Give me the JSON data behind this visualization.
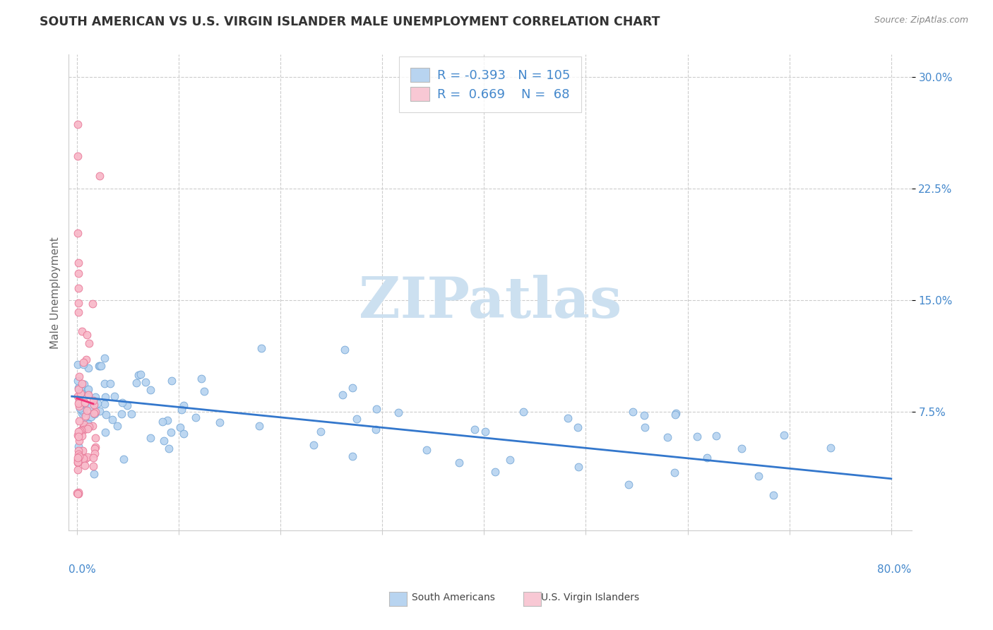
{
  "title": "SOUTH AMERICAN VS U.S. VIRGIN ISLANDER MALE UNEMPLOYMENT CORRELATION CHART",
  "source": "Source: ZipAtlas.com",
  "ylabel": "Male Unemployment",
  "xlim": [
    -0.008,
    0.82
  ],
  "ylim": [
    -0.005,
    0.315
  ],
  "blue_color": "#b8d4f0",
  "blue_edge": "#7aaad8",
  "pink_color": "#f8b8c8",
  "pink_edge": "#e87898",
  "blue_line_color": "#3377cc",
  "pink_line_color": "#ee3377",
  "blue_R": -0.393,
  "blue_N": 105,
  "pink_R": 0.669,
  "pink_N": 68,
  "watermark": "ZIPatlas",
  "watermark_color": "#cce0f0",
  "background_color": "#ffffff",
  "legend_box_blue_color": "#b8d4f0",
  "legend_box_pink_color": "#f8c8d4",
  "title_color": "#333333",
  "axis_label_color": "#4488cc",
  "source_color": "#888888"
}
